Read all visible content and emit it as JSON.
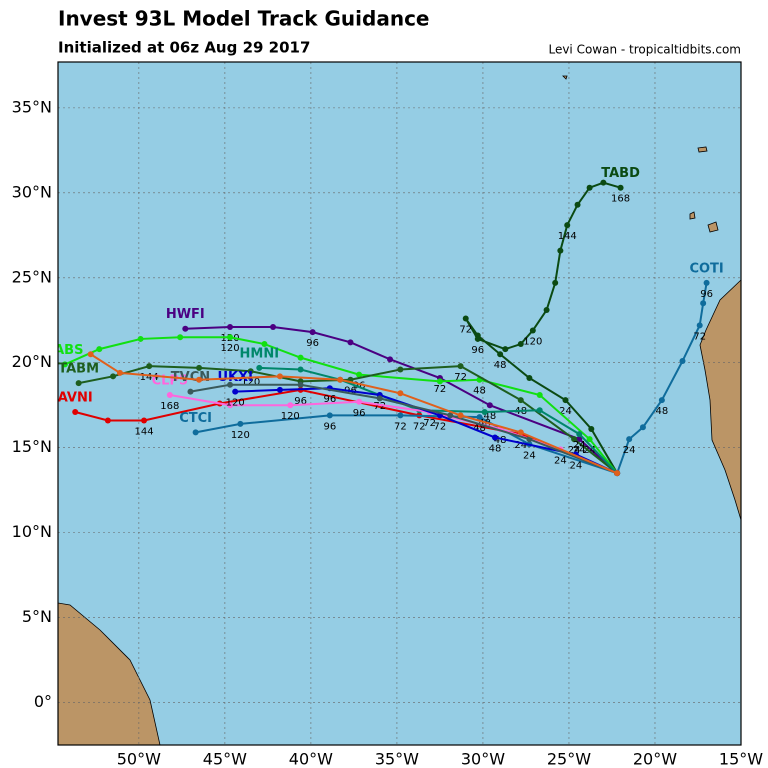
{
  "header": {
    "title": "Invest 93L Model Track Guidance",
    "subtitle": "Initialized at 06z Aug 29 2017",
    "credit": "Levi Cowan - tropicaltidbits.com"
  },
  "map": {
    "xlim": [
      -54.7,
      -15
    ],
    "ylim": [
      -2.5,
      37.7
    ],
    "xticks": [
      {
        "value": -50,
        "label": "50°W"
      },
      {
        "value": -45,
        "label": "45°W"
      },
      {
        "value": -40,
        "label": "40°W"
      },
      {
        "value": -35,
        "label": "35°W"
      },
      {
        "value": -30,
        "label": "30°W"
      },
      {
        "value": -25,
        "label": "25°W"
      },
      {
        "value": -20,
        "label": "20°W"
      },
      {
        "value": -15,
        "label": "15°W"
      }
    ],
    "yticks": [
      {
        "value": 0,
        "label": "0°"
      },
      {
        "value": 5,
        "label": "5°N"
      },
      {
        "value": 10,
        "label": "10°N"
      },
      {
        "value": 15,
        "label": "15°N"
      },
      {
        "value": 20,
        "label": "20°N"
      },
      {
        "value": 25,
        "label": "25°N"
      },
      {
        "value": 30,
        "label": "30°N"
      },
      {
        "value": 35,
        "label": "35°N"
      }
    ],
    "grid": true,
    "tracks": [
      {
        "name": "TABD",
        "color": "#0b4a12",
        "points": [
          [
            -22.2,
            13.5
          ],
          [
            -23.7,
            16.1
          ],
          [
            -25.2,
            17.8
          ],
          [
            -27.3,
            19.1
          ],
          [
            -29.0,
            20.5
          ],
          [
            -30.3,
            21.6
          ],
          [
            -31.0,
            22.6
          ],
          [
            -30.3,
            21.4
          ],
          [
            -28.7,
            20.8
          ],
          [
            -27.8,
            21.1
          ],
          [
            -27.1,
            21.9
          ],
          [
            -26.3,
            23.1
          ],
          [
            -25.8,
            24.7
          ],
          [
            -25.5,
            26.6
          ],
          [
            -25.1,
            28.1
          ],
          [
            -24.5,
            29.3
          ],
          [
            -23.8,
            30.3
          ],
          [
            -23.0,
            30.6
          ],
          [
            -22.0,
            30.3
          ]
        ],
        "point_labels": [
          null,
          null,
          "24",
          null,
          "48",
          null,
          "72",
          "96",
          null,
          null,
          "120",
          null,
          null,
          null,
          "144",
          null,
          null,
          null,
          "168"
        ]
      },
      {
        "name": "COTI",
        "color": "#0f6c9c",
        "points": [
          [
            -22.2,
            13.5
          ],
          [
            -21.5,
            15.5
          ],
          [
            -20.7,
            16.2
          ],
          [
            -19.6,
            17.8
          ],
          [
            -18.4,
            20.1
          ],
          [
            -17.4,
            22.2
          ],
          [
            -17.2,
            23.5
          ],
          [
            -17.0,
            24.7
          ]
        ],
        "point_labels": [
          null,
          "24",
          null,
          "48",
          null,
          "72",
          null,
          "96"
        ]
      },
      {
        "name": "AVNI",
        "color": "#e00000",
        "points": [
          [
            -22.2,
            13.5
          ],
          [
            -27.8,
            15.8
          ],
          [
            -33.7,
            16.9
          ],
          [
            -40.6,
            18.4
          ],
          [
            -45.3,
            17.6
          ],
          [
            -49.7,
            16.6
          ],
          [
            -51.8,
            16.6
          ],
          [
            -53.7,
            17.1
          ]
        ],
        "point_labels": [
          null,
          "24",
          "72",
          "96",
          null,
          "144",
          null,
          null
        ]
      },
      {
        "name": "CTCI",
        "color": "#0f6c9c",
        "points": [
          [
            -22.2,
            13.5
          ],
          [
            -27.3,
            15.2
          ],
          [
            -30.2,
            16.8
          ],
          [
            -34.8,
            16.9
          ],
          [
            -38.9,
            16.9
          ],
          [
            -44.1,
            16.4
          ],
          [
            -46.7,
            15.9
          ]
        ],
        "point_labels": [
          null,
          "24",
          "48",
          "72",
          "96",
          "120",
          null
        ]
      },
      {
        "name": "HWFI",
        "color": "#4b0082",
        "points": [
          [
            -22.2,
            13.5
          ],
          [
            -24.4,
            15.5
          ],
          [
            -29.6,
            17.5
          ],
          [
            -32.5,
            19.1
          ],
          [
            -35.4,
            20.2
          ],
          [
            -37.7,
            21.2
          ],
          [
            -39.9,
            21.8
          ],
          [
            -42.2,
            22.1
          ],
          [
            -44.7,
            22.1
          ],
          [
            -47.3,
            22.0
          ]
        ],
        "point_labels": [
          null,
          "24",
          "48",
          "72",
          null,
          null,
          "96",
          null,
          "120",
          null
        ]
      },
      {
        "name": "TABS",
        "color": "#11e011",
        "points": [
          [
            -22.2,
            13.5
          ],
          [
            -23.8,
            15.5
          ],
          [
            -26.7,
            18.1
          ],
          [
            -30.2,
            19.0
          ],
          [
            -32.5,
            18.9
          ],
          [
            -37.2,
            19.3
          ],
          [
            -40.6,
            20.3
          ],
          [
            -42.7,
            21.1
          ],
          [
            -44.7,
            21.5
          ],
          [
            -47.6,
            21.5
          ],
          [
            -49.9,
            21.4
          ],
          [
            -52.3,
            20.8
          ],
          [
            -54.3,
            19.9
          ]
        ],
        "point_labels": [
          null,
          "24",
          null,
          "48",
          null,
          "96",
          null,
          null,
          "120",
          null,
          null,
          null,
          null
        ]
      },
      {
        "name": "TABM",
        "color": "#1e5e1e",
        "points": [
          [
            -22.2,
            13.5
          ],
          [
            -24.7,
            15.5
          ],
          [
            -27.8,
            17.8
          ],
          [
            -31.3,
            19.8
          ],
          [
            -34.8,
            19.6
          ],
          [
            -37.7,
            19.0
          ],
          [
            -40.6,
            18.9
          ],
          [
            -43.5,
            19.5
          ],
          [
            -46.5,
            19.7
          ],
          [
            -49.4,
            19.8
          ],
          [
            -51.5,
            19.2
          ],
          [
            -53.5,
            18.8
          ]
        ],
        "point_labels": [
          null,
          "24",
          "48",
          "72",
          null,
          "96",
          null,
          "120",
          null,
          "144",
          null,
          null
        ]
      },
      {
        "name": "HMNI",
        "color": "#00876a",
        "points": [
          [
            -22.2,
            13.5
          ],
          [
            -24.4,
            15.8
          ],
          [
            -26.7,
            17.2
          ],
          [
            -29.9,
            17.1
          ],
          [
            -33.7,
            17.2
          ],
          [
            -36.0,
            18.1
          ],
          [
            -38.3,
            19.0
          ],
          [
            -40.6,
            19.6
          ],
          [
            -43.0,
            19.7
          ]
        ],
        "point_labels": [
          null,
          "24",
          null,
          "48",
          null,
          "72",
          null,
          null,
          null
        ]
      },
      {
        "name": "CLP5",
        "color": "#ff66dd",
        "points": [
          [
            -22.2,
            13.5
          ],
          [
            -25.5,
            14.9
          ],
          [
            -29.0,
            16.1
          ],
          [
            -33.1,
            17.1
          ],
          [
            -37.2,
            17.7
          ],
          [
            -41.2,
            17.5
          ],
          [
            -44.7,
            17.5
          ],
          [
            -48.2,
            18.1
          ]
        ],
        "point_labels": [
          null,
          "24",
          "48",
          "72",
          "96",
          "120",
          null,
          "168"
        ]
      },
      {
        "name": "UKXI",
        "color": "#0000cc",
        "points": [
          [
            -22.2,
            13.5
          ],
          [
            -24.6,
            14.6
          ],
          [
            -29.3,
            15.6
          ],
          [
            -32.5,
            16.9
          ],
          [
            -36.0,
            18.1
          ],
          [
            -38.9,
            18.5
          ],
          [
            -41.8,
            18.4
          ],
          [
            -44.4,
            18.3
          ]
        ],
        "point_labels": [
          null,
          "24",
          "48",
          "72",
          null,
          "96",
          null,
          "120"
        ]
      },
      {
        "name": "TVCN",
        "color": "#3a5a5a",
        "points": [
          [
            -22.2,
            13.5
          ],
          [
            -27.3,
            15.5
          ],
          [
            -31.9,
            16.9
          ],
          [
            -36.0,
            17.9
          ],
          [
            -40.6,
            18.7
          ],
          [
            -44.7,
            18.7
          ],
          [
            -47.0,
            18.3
          ]
        ],
        "point_labels": [
          null,
          null,
          null,
          null,
          null,
          null,
          null
        ]
      },
      {
        "color": "#e0601c",
        "points": [
          [
            -22.2,
            13.5
          ],
          [
            -27.8,
            15.9
          ],
          [
            -31.3,
            16.9
          ],
          [
            -34.8,
            18.2
          ],
          [
            -38.3,
            19.0
          ],
          [
            -41.8,
            19.2
          ],
          [
            -46.5,
            19.0
          ],
          [
            -51.1,
            19.4
          ],
          [
            -52.8,
            20.5
          ]
        ],
        "point_labels": [
          null,
          null,
          null,
          null,
          null,
          null,
          null,
          null,
          null
        ]
      }
    ]
  }
}
